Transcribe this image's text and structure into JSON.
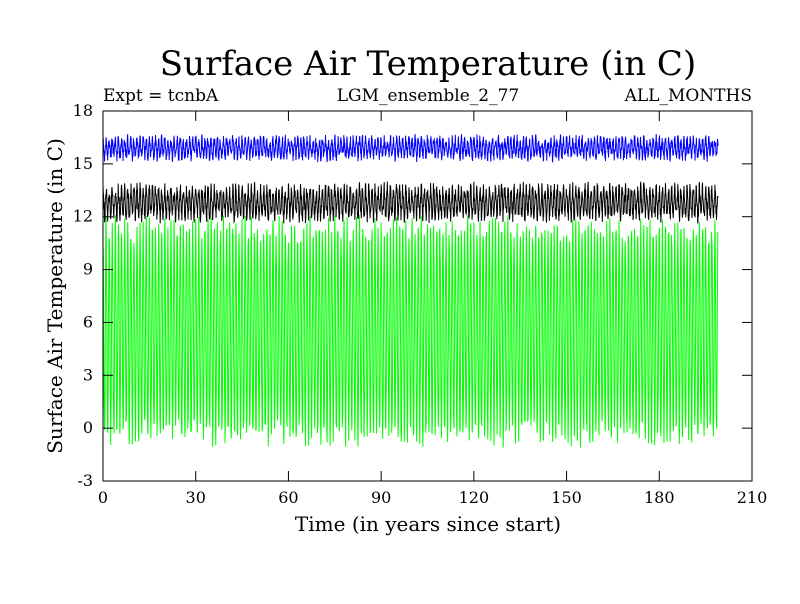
{
  "chart_data": {
    "type": "line",
    "title": "Surface Air Temperature (in C)",
    "subtitle_left": "Expt = tcnbA",
    "subtitle_center": "LGM_ensemble_2_77",
    "subtitle_right": "ALL_MONTHS",
    "xlabel": "Time (in years since start)",
    "ylabel": "Surface Air Temperature (in C)",
    "xlim": [
      0,
      210
    ],
    "ylim": [
      -3,
      18
    ],
    "xticks": [
      0,
      30,
      60,
      90,
      120,
      150,
      180,
      210
    ],
    "yticks": [
      -3,
      0,
      3,
      6,
      9,
      12,
      15,
      18
    ],
    "x_range_data": [
      0,
      199
    ],
    "series": [
      {
        "name": "blue",
        "color": "#0000ff",
        "monthly_mean": 15.9,
        "amplitude": 0.45,
        "noise": 0.35
      },
      {
        "name": "black",
        "color": "#000000",
        "monthly_mean": 12.8,
        "amplitude": 0.75,
        "noise": 0.45
      },
      {
        "name": "green",
        "color": "#00ff00",
        "monthly_mean": 5.5,
        "amplitude": 5.8,
        "noise": 0.8
      }
    ]
  }
}
